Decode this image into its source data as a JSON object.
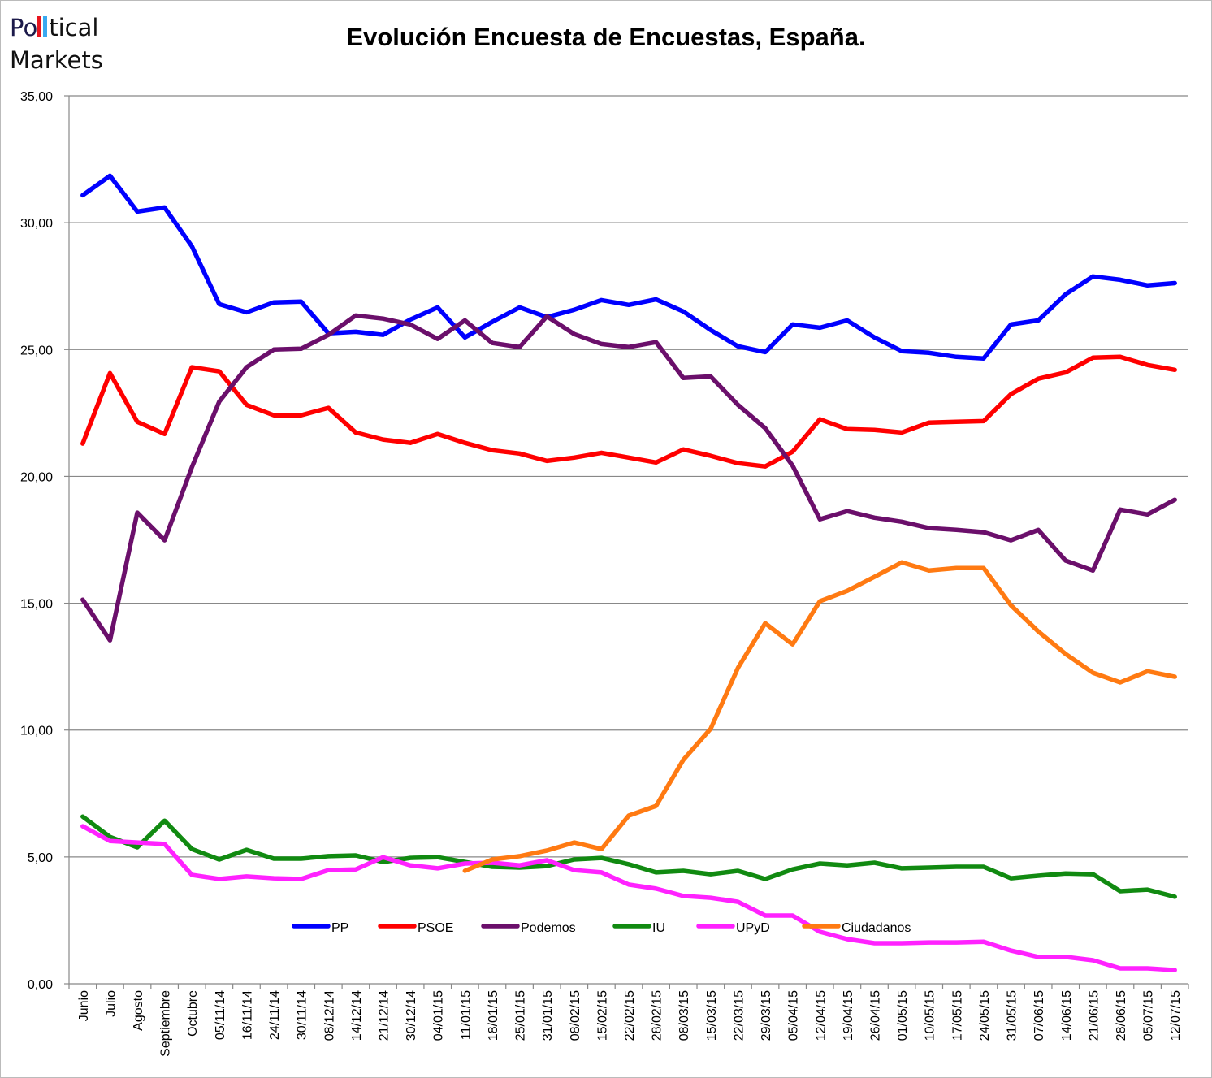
{
  "logo": {
    "line1_a": "Po",
    "line1_b": "tical",
    "line2": "Markets",
    "text": "Political Markets",
    "bar_colors": [
      "#e8141e",
      "#39a9f0"
    ]
  },
  "chart_data": {
    "type": "line",
    "title": "Evolución Encuesta de Encuestas, España.",
    "xlabel": "",
    "ylabel": "",
    "ylim": [
      0,
      35
    ],
    "yticks": [
      "0,00",
      "5,00",
      "10,00",
      "15,00",
      "20,00",
      "25,00",
      "30,00",
      "35,00"
    ],
    "grid": true,
    "legend_position": "bottom-center-inside",
    "categories": [
      "Junio",
      "Julio",
      "Agosto",
      "Septiembre",
      "Octubre",
      "05/11/14",
      "16/11/14",
      "24/11/14",
      "30/11/14",
      "08/12/14",
      "14/12/14",
      "21/12/14",
      "30/12/14",
      "04/01/15",
      "11/01/15",
      "18/01/15",
      "25/01/15",
      "31/01/15",
      "08/02/15",
      "15/02/15",
      "22/02/15",
      "28/02/15",
      "08/03/15",
      "15/03/15",
      "22/03/15",
      "29/03/15",
      "05/04/15",
      "12/04/15",
      "19/04/15",
      "26/04/15",
      "01/05/15",
      "10/05/15",
      "17/05/15",
      "24/05/15",
      "31/05/15",
      "07/06/15",
      "14/06/15",
      "21/06/15",
      "28/06/15",
      "05/07/15",
      "12/07/15"
    ],
    "series": [
      {
        "name": "PP",
        "color": "#0000ff",
        "values": [
          31.08,
          31.85,
          30.44,
          30.6,
          29.07,
          26.79,
          26.47,
          26.86,
          26.89,
          25.64,
          25.7,
          25.58,
          26.18,
          26.66,
          25.48,
          26.09,
          26.66,
          26.28,
          26.57,
          26.95,
          26.76,
          26.98,
          26.5,
          25.77,
          25.13,
          24.9,
          25.99,
          25.86,
          26.15,
          25.48,
          24.94,
          24.87,
          24.71,
          24.65,
          25.99,
          26.15,
          27.18,
          27.88,
          27.75,
          27.53,
          27.62
        ]
      },
      {
        "name": "PSOE",
        "color": "#ff0000",
        "values": [
          21.29,
          24.07,
          22.15,
          21.67,
          24.3,
          24.14,
          22.82,
          22.41,
          22.41,
          22.7,
          21.73,
          21.45,
          21.32,
          21.67,
          21.32,
          21.03,
          20.9,
          20.61,
          20.74,
          20.93,
          20.74,
          20.55,
          21.06,
          20.81,
          20.52,
          20.39,
          20.97,
          22.25,
          21.86,
          21.83,
          21.73,
          22.12,
          22.15,
          22.18,
          23.24,
          23.85,
          24.1,
          24.68,
          24.71,
          24.39,
          24.2
        ]
      },
      {
        "name": "Podemos",
        "color": "#6b0f6b",
        "values": [
          15.14,
          13.54,
          18.57,
          17.48,
          20.36,
          22.95,
          24.3,
          25.0,
          25.03,
          25.58,
          26.34,
          26.22,
          25.99,
          25.42,
          26.15,
          25.26,
          25.1,
          26.31,
          25.61,
          25.22,
          25.1,
          25.29,
          23.88,
          23.94,
          22.82,
          21.9,
          20.42,
          18.31,
          18.63,
          18.37,
          18.21,
          17.96,
          17.89,
          17.8,
          17.48,
          17.89,
          16.68,
          16.29,
          18.69,
          18.5,
          19.08
        ]
      },
      {
        "name": "IU",
        "color": "#118a11",
        "values": [
          6.59,
          5.79,
          5.38,
          6.43,
          5.31,
          4.9,
          5.28,
          4.93,
          4.93,
          5.03,
          5.06,
          4.8,
          4.96,
          4.99,
          4.8,
          4.61,
          4.58,
          4.64,
          4.9,
          4.96,
          4.71,
          4.39,
          4.45,
          4.32,
          4.45,
          4.13,
          4.51,
          4.74,
          4.67,
          4.77,
          4.55,
          4.58,
          4.61,
          4.61,
          4.16,
          4.26,
          4.35,
          4.32,
          3.65,
          3.71,
          3.43
        ]
      },
      {
        "name": "UPyD",
        "color": "#ff22ff",
        "values": [
          6.21,
          5.63,
          5.57,
          5.51,
          4.29,
          4.13,
          4.23,
          4.16,
          4.13,
          4.48,
          4.51,
          4.99,
          4.67,
          4.55,
          4.74,
          4.77,
          4.67,
          4.87,
          4.48,
          4.39,
          3.91,
          3.75,
          3.46,
          3.39,
          3.23,
          2.69,
          2.69,
          2.05,
          1.76,
          1.6,
          1.6,
          1.63,
          1.63,
          1.66,
          1.31,
          1.06,
          1.06,
          0.93,
          0.61,
          0.61,
          0.54
        ]
      },
      {
        "name": "Ciudadanos",
        "color": "#ff7a12",
        "values": [
          null,
          null,
          null,
          null,
          null,
          null,
          null,
          null,
          null,
          null,
          null,
          null,
          null,
          null,
          4.45,
          4.9,
          5.03,
          5.25,
          5.57,
          5.31,
          6.63,
          7.01,
          8.83,
          10.05,
          12.45,
          14.21,
          13.38,
          15.08,
          15.49,
          16.04,
          16.61,
          16.29,
          16.39,
          16.39,
          14.92,
          13.89,
          13.0,
          12.26,
          11.88,
          12.32,
          12.1
        ]
      }
    ]
  }
}
